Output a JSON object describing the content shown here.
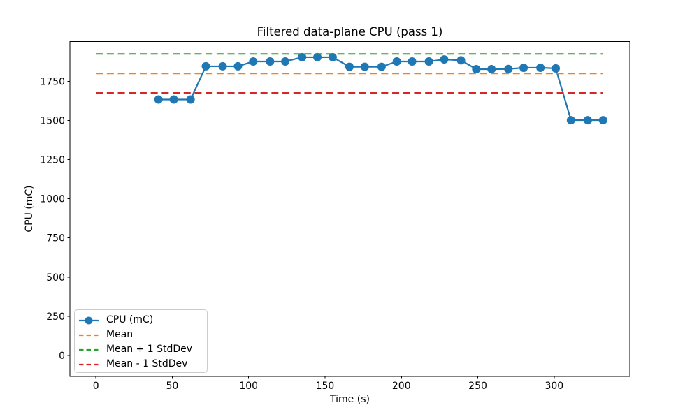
{
  "chart_data": {
    "type": "line",
    "title": "Filtered data-plane CPU (pass 1)",
    "xlabel": "Time (s)",
    "ylabel": "CPU (mC)",
    "xlim": [
      -17,
      349.5
    ],
    "ylim": [
      -134,
      2004
    ],
    "x_ticks": [
      0,
      50,
      100,
      150,
      200,
      250,
      300
    ],
    "y_ticks": [
      0,
      250,
      500,
      750,
      1000,
      1250,
      1500,
      1750
    ],
    "grid": false,
    "legend_position": "lower left",
    "series": [
      {
        "name": "CPU (mC)",
        "color": "#1f77b4",
        "line_style": "solid",
        "marker": "circle",
        "x": [
          41,
          51,
          62,
          72,
          83,
          93,
          103,
          114,
          124,
          135,
          145,
          155,
          166,
          176,
          187,
          197,
          207,
          218,
          228,
          239,
          249,
          259,
          270,
          280,
          291,
          301,
          311,
          322,
          332
        ],
        "y": [
          1634,
          1634,
          1634,
          1846,
          1846,
          1846,
          1877,
          1877,
          1877,
          1904,
          1904,
          1904,
          1843,
          1843,
          1843,
          1877,
          1877,
          1877,
          1890,
          1884,
          1828,
          1828,
          1829,
          1837,
          1837,
          1833,
          1502,
          1502,
          1502
        ]
      }
    ],
    "hlines": [
      {
        "id": "mean-line",
        "name": "Mean",
        "value": 1800,
        "color": "#ff7f0e",
        "line_style": "dashed",
        "x_start": 0,
        "x_end": 332
      },
      {
        "id": "mean-plus-std-line",
        "name": "Mean + 1 StdDev",
        "value": 1925,
        "color": "#2ca02c",
        "line_style": "dashed",
        "x_start": 0,
        "x_end": 332
      },
      {
        "id": "mean-minus-std-line",
        "name": "Mean - 1 StdDev",
        "value": 1676,
        "color": "#d62728",
        "line_style": "dashed",
        "x_start": 0,
        "x_end": 332
      }
    ],
    "legend": [
      {
        "label": "CPU (mC)",
        "color": "#1f77b4",
        "line": "solid",
        "marker": "circle"
      },
      {
        "label": "Mean",
        "color": "#ff7f0e",
        "line": "dashed"
      },
      {
        "label": "Mean + 1 StdDev",
        "color": "#2ca02c",
        "line": "dashed"
      },
      {
        "label": "Mean - 1 StdDev",
        "color": "#d62728",
        "line": "dashed"
      }
    ],
    "axis_color": "#000000",
    "text_color": "#000000",
    "background_color": "#ffffff"
  }
}
